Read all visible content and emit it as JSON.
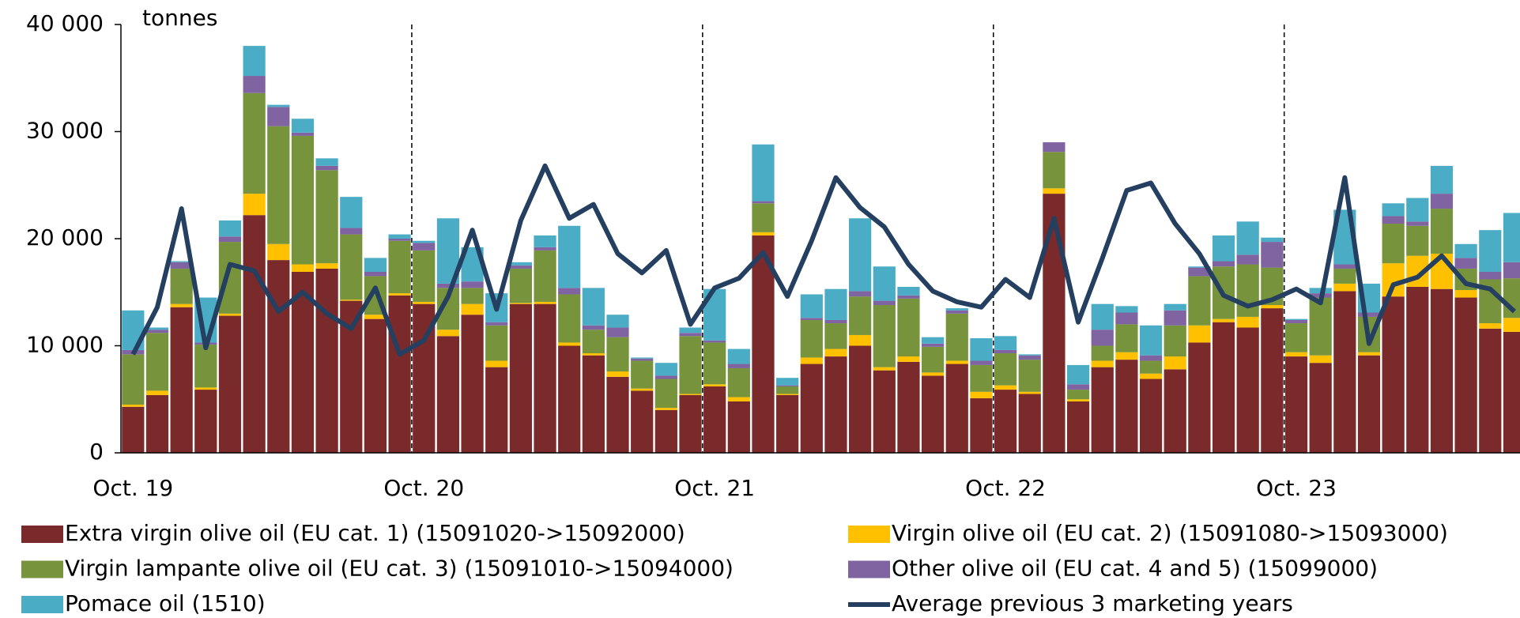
{
  "chart_data": {
    "type": "bar",
    "stacked": true,
    "y_unit": "tonnes",
    "categories": [
      "Oct. 19",
      null,
      null,
      null,
      null,
      null,
      null,
      null,
      null,
      null,
      null,
      null,
      "Oct. 20",
      null,
      null,
      null,
      null,
      null,
      null,
      null,
      null,
      null,
      null,
      null,
      "Oct. 21",
      null,
      null,
      null,
      null,
      null,
      null,
      null,
      null,
      null,
      null,
      null,
      "Oct. 22",
      null,
      null,
      null,
      null,
      null,
      null,
      null,
      null,
      null,
      null,
      null,
      "Oct. 23",
      null,
      null,
      null,
      null,
      null,
      null,
      null,
      null,
      null
    ],
    "ylim": [
      0,
      40000
    ],
    "yticks": [
      0,
      {
        "value": 10000,
        "label": "10 000"
      },
      {
        "value": 20000,
        "label": "20 000"
      },
      {
        "value": 30000,
        "label": "30 000"
      },
      {
        "value": 40000,
        "label": "40 000"
      }
    ],
    "grid": false,
    "series": [
      {
        "name": "Extra virgin olive oil (EU cat. 1) (15091020->15092000)",
        "color": "#7a2a2a",
        "values": [
          4300,
          5400,
          13600,
          5900,
          12800,
          22200,
          18000,
          16900,
          17200,
          14200,
          12500,
          14700,
          13900,
          10900,
          12900,
          8000,
          13900,
          13900,
          10000,
          9100,
          7100,
          5800,
          4000,
          5400,
          6200,
          4800,
          20300,
          5400,
          8300,
          9000,
          10000,
          7700,
          8500,
          7200,
          8300,
          5100,
          5900,
          5500,
          24200,
          4800,
          8000,
          8700,
          6900,
          7800,
          10300,
          12200,
          11700,
          13500,
          9000,
          8400,
          15100,
          9100,
          14600,
          15500,
          15300,
          14500,
          11600,
          11300
        ]
      },
      {
        "name": "Virgin olive oil (EU cat. 2) (15091080->15093000)",
        "color": "#ffc000",
        "values": [
          200,
          400,
          300,
          200,
          200,
          2000,
          1500,
          700,
          500,
          100,
          400,
          200,
          200,
          600,
          1000,
          600,
          100,
          200,
          300,
          200,
          500,
          200,
          200,
          100,
          200,
          400,
          300,
          100,
          600,
          700,
          1000,
          300,
          500,
          300,
          300,
          600,
          400,
          200,
          500,
          200,
          600,
          700,
          500,
          1200,
          1600,
          300,
          1000,
          300,
          400,
          700,
          700,
          300,
          3100,
          2900,
          3300,
          700,
          500,
          1300
        ]
      },
      {
        "name": "Virgin lampante olive oil (EU cat. 3) (15091010->15094000)",
        "color": "#77933c",
        "values": [
          4700,
          5400,
          3300,
          4000,
          6700,
          9400,
          11000,
          12000,
          8700,
          6100,
          3600,
          4900,
          4800,
          3900,
          1500,
          3300,
          3200,
          4800,
          4500,
          2200,
          3200,
          2600,
          2700,
          5400,
          3900,
          2700,
          2700,
          700,
          3500,
          2400,
          3600,
          5800,
          5400,
          2400,
          4400,
          2500,
          3000,
          3000,
          3400,
          900,
          1400,
          2600,
          1200,
          2900,
          4600,
          4900,
          4900,
          3500,
          2700,
          5400,
          1400,
          3300,
          3700,
          2800,
          4200,
          2000,
          4100,
          3700
        ]
      },
      {
        "name": "Other olive oil (EU cat. 4 and 5) (15099000)",
        "color": "#8064a2",
        "values": [
          400,
          300,
          600,
          200,
          500,
          1600,
          1800,
          300,
          400,
          600,
          400,
          200,
          700,
          400,
          600,
          300,
          300,
          300,
          600,
          400,
          900,
          200,
          300,
          300,
          200,
          400,
          200,
          100,
          200,
          300,
          500,
          400,
          300,
          300,
          300,
          400,
          300,
          400,
          900,
          500,
          1500,
          1100,
          500,
          1400,
          800,
          500,
          900,
          2400,
          300,
          400,
          400,
          400,
          700,
          400,
          1400,
          1000,
          700,
          1500
        ]
      },
      {
        "name": "Pomace oil  (1510)",
        "color": "#4bacc6",
        "values": [
          3700,
          200,
          100,
          4200,
          1500,
          2800,
          200,
          1300,
          700,
          2900,
          1300,
          400,
          200,
          6100,
          3200,
          2700,
          300,
          1100,
          5800,
          3500,
          1200,
          100,
          1200,
          500,
          4800,
          1400,
          5300,
          700,
          2200,
          2900,
          6800,
          3200,
          800,
          600,
          200,
          2100,
          1300,
          100,
          0,
          1800,
          2400,
          600,
          2800,
          600,
          100,
          2400,
          3100,
          400,
          100,
          500,
          5100,
          2700,
          1200,
          2200,
          2600,
          1300,
          3900,
          4600
        ]
      },
      {
        "name": "Average previous 3 marketing years",
        "color": "#243f60",
        "type": "line",
        "values": [
          9200,
          13600,
          22800,
          9800,
          17600,
          17000,
          13200,
          15000,
          13000,
          11600,
          15400,
          9200,
          10500,
          14600,
          20800,
          13400,
          21700,
          26800,
          21900,
          23200,
          18600,
          16800,
          18900,
          12000,
          15400,
          16300,
          18700,
          14600,
          19800,
          25700,
          22900,
          21100,
          17600,
          15100,
          14100,
          13600,
          16200,
          14500,
          21900,
          12200,
          18200,
          24500,
          25200,
          21400,
          18600,
          14700,
          13700,
          14300,
          15300,
          14000,
          25700,
          10200,
          15700,
          16400,
          18400,
          15800,
          15300,
          13200
        ]
      }
    ]
  }
}
